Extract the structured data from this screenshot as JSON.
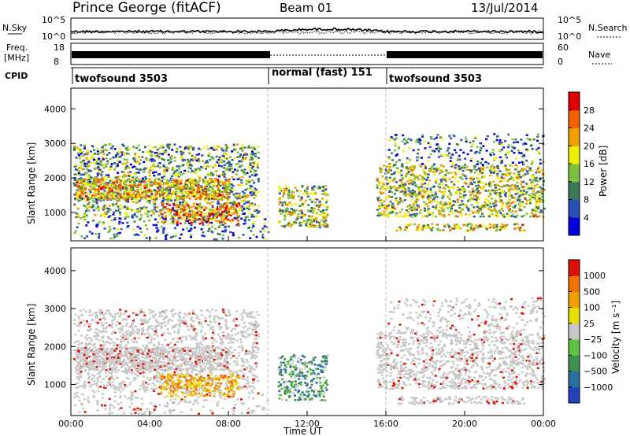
{
  "header": {
    "station": "Prince George (fitACF)",
    "beam": "Beam 01",
    "date": "13/Jul/2014"
  },
  "top_panels": {
    "nsky_label": "N.Sky",
    "nsky_ticks": [
      "10^5",
      "10^0"
    ],
    "nsearch_label": "N.Search",
    "nsearch_ticks": [
      "10^5",
      "10^0"
    ],
    "freq_label": "Freq.",
    "freq_unit": "[MHz]",
    "freq_ticks": [
      "18",
      "8"
    ],
    "nave_label": "Nave",
    "nave_ticks": [
      "60",
      "0"
    ],
    "cpid_label": "CPID",
    "cpid_segments": [
      {
        "name": "twofsound 3503",
        "start_h": 0,
        "end_h": 10
      },
      {
        "name": "normal (fast) 151",
        "start_h": 10,
        "end_h": 16
      },
      {
        "name": "twofsound 3503",
        "start_h": 16,
        "end_h": 24
      }
    ]
  },
  "colors": {
    "power": [
      "#0000dd",
      "#2a4fb8",
      "#3a7a5a",
      "#80c040",
      "#f0f000",
      "#f0a000",
      "#f06000",
      "#e00000"
    ],
    "velocity": [
      "#2244bb",
      "#2a6f9f",
      "#3f8f50",
      "#60c040",
      "#c8c8c8",
      "#e8e000",
      "#f0a000",
      "#f07000",
      "#e01000"
    ]
  },
  "chart_data": [
    {
      "type": "heatmap",
      "title": "Power",
      "ylabel": "Slant Range [km]",
      "xlabel": "Time UT",
      "x_range_h": [
        0,
        24
      ],
      "y_range_km": [
        180,
        4600
      ],
      "y_ticks": [
        "4000",
        "3000",
        "2000",
        "1000"
      ],
      "colorbar_label": "Power [dB]",
      "colorbar_ticks": [
        "28",
        "24",
        "20",
        "16",
        "12",
        "8",
        "4"
      ],
      "colorbar_range": [
        0,
        32
      ]
    },
    {
      "type": "heatmap",
      "title": "Velocity",
      "ylabel": "Slant Range [km]",
      "xlabel": "Time UT",
      "x_range_h": [
        0,
        24
      ],
      "y_range_km": [
        180,
        4600
      ],
      "y_ticks": [
        "4000",
        "3000",
        "2000",
        "1000"
      ],
      "colorbar_label": "Velocity [m s⁻¹]",
      "colorbar_ticks": [
        "1000",
        "500",
        "100",
        "25",
        "−25",
        "−100",
        "−500",
        "−1000"
      ]
    }
  ],
  "x_axis": {
    "ticks": [
      "00:00",
      "04:00",
      "08:00",
      "12:00",
      "16:00",
      "20:00",
      "00:00"
    ],
    "label": "Time UT"
  }
}
